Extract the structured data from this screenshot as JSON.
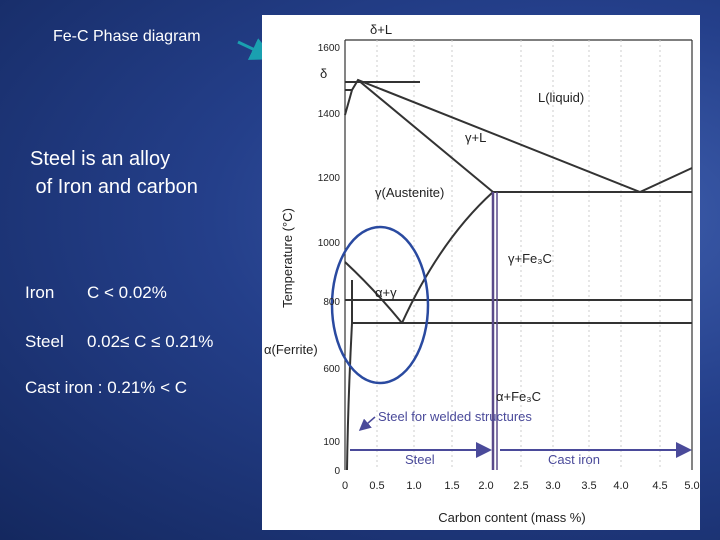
{
  "title": "Fe-C Phase diagram",
  "body": {
    "heading": [
      "Steel is an alloy",
      " of Iron and carbon"
    ],
    "items": [
      [
        "Iron",
        "C < 0.02%"
      ],
      [
        "Steel",
        "0.02≤ C ≤ 0.21%"
      ],
      [
        "Cast iron : 0.21% < C"
      ]
    ]
  },
  "diagram": {
    "labels": {
      "delta_l": "δ+L",
      "delta": "δ",
      "liquid": "L(liquid)",
      "gamma_l": "γ+L",
      "austenite": "γ(Austenite)",
      "gamma_fe3c": "γ+Fe₃C",
      "alpha_gamma": "α+γ",
      "ferrite": "α(Ferrite)",
      "alpha_fe3c": "α+Fe₃C",
      "welded": "Steel for welded structures",
      "steel": "Steel",
      "cast_iron": "Cast iron"
    },
    "y_ticks": [
      "1600",
      "1400",
      "1200",
      "1000",
      "800",
      "600",
      "100",
      "0"
    ],
    "x_ticks": [
      "0",
      "0.5",
      "1.0",
      "1.5",
      "2.0",
      "2.5",
      "3.0",
      "3.5",
      "4.0",
      "4.5",
      "5.0"
    ],
    "y_axis_label": "Temperature (°C)",
    "x_axis_label": "Carbon content (mass %)"
  }
}
